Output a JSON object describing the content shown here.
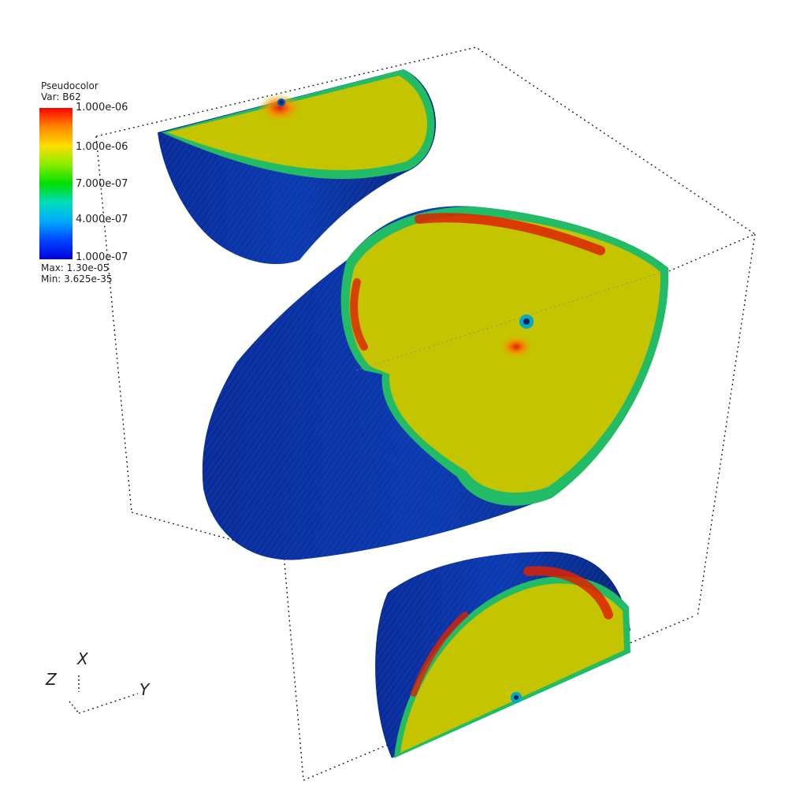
{
  "legend": {
    "title": "Pseudocolor",
    "var_label": "Var: B62",
    "ticks": [
      "1.000e-06",
      "1.000e-06",
      "7.000e-07",
      "4.000e-07",
      "1.000e-07"
    ],
    "max_label": "Max: 1.30e-05",
    "min_label": "Min: 3.625e-35",
    "gradient": [
      "#ff0000",
      "#ff8800",
      "#ffdd00",
      "#88ee00",
      "#00dd00",
      "#00ddbb",
      "#00aaff",
      "#0044ff",
      "#0000dd"
    ]
  },
  "axes": {
    "x": "X",
    "y": "Y",
    "z": "Z"
  },
  "colors": {
    "background": "#ffffff",
    "face": "#c4c400",
    "shell": "#0b2a8e",
    "rim_green": "#22cc44",
    "hot": "#dd2200"
  }
}
